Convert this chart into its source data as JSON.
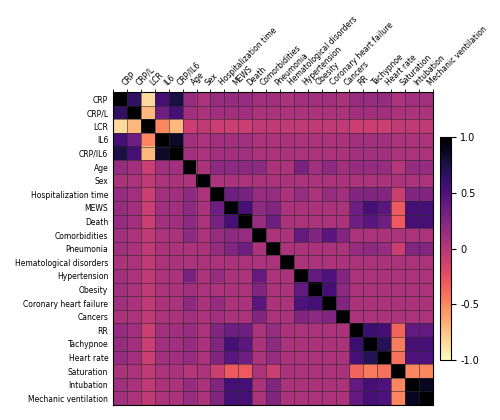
{
  "labels": [
    "CRP",
    "CRP/L",
    "LCR",
    "IL6",
    "CRP/IL6",
    "Age",
    "Sex",
    "Hospitalization time",
    "MEWS",
    "Death",
    "Comorbidities",
    "Pneumonia",
    "Hematological disorders",
    "Hypertension",
    "Obesity",
    "Coronary heart failure",
    "Cancers",
    "RR",
    "Tachypnoe",
    "Heart rate",
    "Saturation",
    "Intubation",
    "Mechanic ventilation"
  ],
  "corr_matrix": [
    [
      1.0,
      0.65,
      -0.85,
      0.55,
      0.75,
      0.15,
      0.05,
      0.15,
      0.15,
      0.15,
      0.1,
      0.1,
      0.05,
      0.1,
      0.1,
      0.1,
      0.05,
      0.15,
      0.15,
      0.15,
      0.05,
      0.1,
      0.1
    ],
    [
      0.65,
      1.0,
      -0.7,
      0.35,
      0.55,
      0.1,
      0.05,
      0.1,
      0.1,
      0.1,
      0.05,
      0.05,
      0.05,
      0.05,
      0.05,
      0.05,
      0.05,
      0.1,
      0.1,
      0.1,
      0.05,
      0.05,
      0.05
    ],
    [
      -0.85,
      -0.7,
      1.0,
      -0.5,
      -0.7,
      -0.1,
      -0.05,
      -0.1,
      -0.1,
      -0.1,
      -0.05,
      -0.05,
      -0.05,
      -0.05,
      -0.05,
      -0.05,
      -0.05,
      -0.1,
      -0.1,
      -0.1,
      -0.05,
      -0.05,
      -0.05
    ],
    [
      0.55,
      0.35,
      -0.5,
      1.0,
      0.85,
      0.1,
      0.05,
      0.1,
      0.1,
      0.1,
      0.05,
      0.05,
      0.05,
      0.05,
      0.05,
      0.05,
      0.05,
      0.1,
      0.1,
      0.1,
      0.05,
      0.05,
      0.05
    ],
    [
      0.75,
      0.55,
      -0.7,
      0.85,
      1.0,
      0.1,
      0.05,
      0.1,
      0.1,
      0.1,
      0.05,
      0.05,
      0.05,
      0.05,
      0.05,
      0.05,
      0.05,
      0.1,
      0.1,
      0.1,
      0.05,
      0.05,
      0.05
    ],
    [
      0.15,
      0.1,
      -0.1,
      0.1,
      0.1,
      1.0,
      0.05,
      0.2,
      0.2,
      0.2,
      0.2,
      0.05,
      0.05,
      0.3,
      0.1,
      0.2,
      0.1,
      0.15,
      0.15,
      0.15,
      0.0,
      0.15,
      0.15
    ],
    [
      0.05,
      0.05,
      -0.05,
      0.05,
      0.05,
      0.05,
      1.0,
      0.05,
      0.05,
      0.05,
      0.05,
      0.05,
      0.05,
      0.05,
      0.05,
      0.05,
      0.05,
      0.05,
      0.05,
      0.05,
      0.05,
      0.05,
      0.05
    ],
    [
      0.15,
      0.1,
      -0.1,
      0.1,
      0.1,
      0.2,
      0.05,
      1.0,
      0.35,
      0.3,
      0.15,
      0.15,
      0.05,
      0.15,
      0.05,
      0.15,
      0.1,
      0.25,
      0.25,
      0.25,
      -0.1,
      0.25,
      0.25
    ],
    [
      0.15,
      0.1,
      -0.1,
      0.1,
      0.1,
      0.2,
      0.05,
      0.35,
      1.0,
      0.55,
      0.2,
      0.25,
      0.05,
      0.05,
      0.05,
      0.05,
      0.05,
      0.35,
      0.55,
      0.45,
      -0.3,
      0.55,
      0.55
    ],
    [
      0.15,
      0.1,
      -0.1,
      0.1,
      0.1,
      0.2,
      0.05,
      0.3,
      0.55,
      1.0,
      0.15,
      0.35,
      0.05,
      0.05,
      0.05,
      0.05,
      0.05,
      0.35,
      0.45,
      0.35,
      -0.3,
      0.55,
      0.55
    ],
    [
      0.1,
      0.05,
      -0.05,
      0.05,
      0.05,
      0.2,
      0.05,
      0.15,
      0.2,
      0.15,
      1.0,
      0.05,
      0.05,
      0.4,
      0.25,
      0.45,
      0.25,
      0.05,
      0.05,
      0.05,
      0.05,
      0.05,
      0.05
    ],
    [
      0.1,
      0.05,
      -0.05,
      0.05,
      0.05,
      0.05,
      0.05,
      0.15,
      0.25,
      0.35,
      0.05,
      1.0,
      0.05,
      0.05,
      0.05,
      0.05,
      0.05,
      0.15,
      0.2,
      0.15,
      -0.1,
      0.25,
      0.25
    ],
    [
      0.05,
      0.05,
      -0.05,
      0.05,
      0.05,
      0.05,
      0.05,
      0.05,
      0.05,
      0.05,
      0.05,
      0.05,
      1.0,
      0.05,
      0.05,
      0.05,
      0.05,
      0.05,
      0.05,
      0.05,
      0.05,
      0.05,
      0.05
    ],
    [
      0.1,
      0.05,
      -0.05,
      0.05,
      0.05,
      0.3,
      0.05,
      0.15,
      0.05,
      0.05,
      0.4,
      0.05,
      0.05,
      1.0,
      0.4,
      0.5,
      0.25,
      0.05,
      0.05,
      0.05,
      0.05,
      0.05,
      0.05
    ],
    [
      0.1,
      0.05,
      -0.05,
      0.05,
      0.05,
      0.1,
      0.05,
      0.05,
      0.05,
      0.05,
      0.25,
      0.05,
      0.05,
      0.4,
      1.0,
      0.55,
      0.2,
      0.05,
      0.05,
      0.05,
      0.05,
      0.05,
      0.05
    ],
    [
      0.1,
      0.05,
      -0.05,
      0.05,
      0.05,
      0.2,
      0.05,
      0.15,
      0.05,
      0.05,
      0.45,
      0.05,
      0.05,
      0.5,
      0.55,
      1.0,
      0.25,
      0.05,
      0.05,
      0.05,
      0.05,
      0.05,
      0.05
    ],
    [
      0.05,
      0.05,
      -0.05,
      0.05,
      0.05,
      0.1,
      0.05,
      0.1,
      0.05,
      0.05,
      0.25,
      0.05,
      0.05,
      0.25,
      0.2,
      0.25,
      1.0,
      0.05,
      0.05,
      0.05,
      0.05,
      0.05,
      0.05
    ],
    [
      0.15,
      0.1,
      -0.1,
      0.1,
      0.1,
      0.15,
      0.05,
      0.25,
      0.35,
      0.35,
      0.05,
      0.15,
      0.05,
      0.05,
      0.05,
      0.05,
      0.05,
      1.0,
      0.6,
      0.55,
      -0.35,
      0.4,
      0.4
    ],
    [
      0.15,
      0.1,
      -0.1,
      0.1,
      0.1,
      0.15,
      0.05,
      0.25,
      0.55,
      0.45,
      0.05,
      0.2,
      0.05,
      0.05,
      0.05,
      0.05,
      0.05,
      0.6,
      1.0,
      0.7,
      -0.45,
      0.55,
      0.55
    ],
    [
      0.15,
      0.1,
      -0.1,
      0.1,
      0.1,
      0.15,
      0.05,
      0.25,
      0.45,
      0.35,
      0.05,
      0.15,
      0.05,
      0.05,
      0.05,
      0.05,
      0.05,
      0.55,
      0.7,
      1.0,
      -0.4,
      0.5,
      0.5
    ],
    [
      0.05,
      0.05,
      -0.05,
      0.05,
      0.05,
      0.0,
      0.05,
      -0.1,
      -0.3,
      -0.3,
      0.05,
      -0.1,
      0.05,
      0.05,
      0.05,
      0.05,
      0.05,
      -0.35,
      -0.45,
      -0.4,
      1.0,
      -0.5,
      -0.5
    ],
    [
      0.1,
      0.05,
      -0.05,
      0.05,
      0.05,
      0.15,
      0.05,
      0.25,
      0.55,
      0.55,
      0.05,
      0.25,
      0.05,
      0.05,
      0.05,
      0.05,
      0.05,
      0.4,
      0.55,
      0.5,
      -0.5,
      1.0,
      0.88
    ],
    [
      0.1,
      0.05,
      -0.05,
      0.05,
      0.05,
      0.15,
      0.05,
      0.25,
      0.55,
      0.55,
      0.05,
      0.25,
      0.05,
      0.05,
      0.05,
      0.05,
      0.05,
      0.4,
      0.55,
      0.5,
      -0.5,
      0.88,
      1.0
    ]
  ],
  "colormap": "magma_r",
  "vmin": -1.0,
  "vmax": 1.0,
  "cbar_ticks": [
    1.0,
    0.5,
    0.0,
    -0.5,
    -1.0
  ],
  "cbar_labels": [
    "1.0",
    "0.5",
    "0",
    "-0.5",
    "-1.0"
  ],
  "figsize": [
    5.0,
    4.2
  ],
  "dpi": 100,
  "label_fontsize": 5.5,
  "cbar_fontsize": 7,
  "grid_color": "#2a2a2a",
  "grid_linewidth": 0.4
}
